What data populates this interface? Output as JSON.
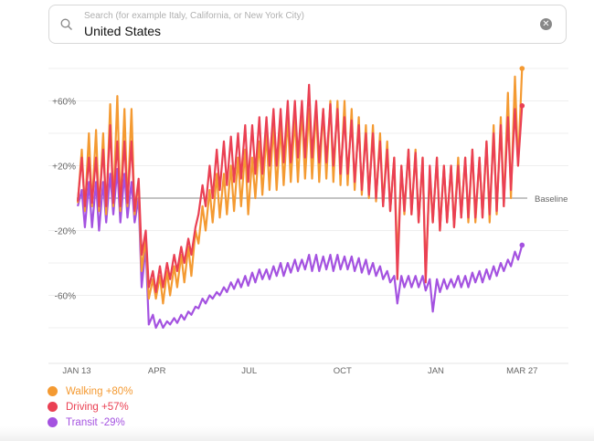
{
  "search": {
    "placeholder": "Search (for example Italy, California, or New York City)",
    "value": "United States",
    "icon": "search-icon",
    "clear_icon": "clear-icon"
  },
  "chart_data": {
    "type": "line",
    "title": "",
    "baseline_label": "Baseline",
    "y_unit": "% change",
    "ylim": [
      -80,
      80
    ],
    "grid": true,
    "y_ticks": [
      {
        "value": 60,
        "label": "+60%"
      },
      {
        "value": 20,
        "label": "+20%"
      },
      {
        "value": -20,
        "label": "-20%"
      },
      {
        "value": -60,
        "label": "-60%"
      }
    ],
    "x_ticks": [
      {
        "date": "2020-01-13",
        "label": "JAN 13"
      },
      {
        "date": "2020-04-01",
        "label": "APR"
      },
      {
        "date": "2020-07-01",
        "label": "JUL"
      },
      {
        "date": "2020-10-01",
        "label": "OCT"
      },
      {
        "date": "2021-01-01",
        "label": "JAN"
      },
      {
        "date": "2021-03-27",
        "label": "MAR 27"
      }
    ],
    "x_week_start": [
      "2020-01-13",
      "2020-01-20",
      "2020-01-27",
      "2020-02-03",
      "2020-02-10",
      "2020-02-17",
      "2020-02-24",
      "2020-03-02",
      "2020-03-09",
      "2020-03-16",
      "2020-03-23",
      "2020-03-30",
      "2020-04-06",
      "2020-04-13",
      "2020-04-20",
      "2020-04-27",
      "2020-05-04",
      "2020-05-11",
      "2020-05-18",
      "2020-05-25",
      "2020-06-01",
      "2020-06-08",
      "2020-06-15",
      "2020-06-22",
      "2020-06-29",
      "2020-07-06",
      "2020-07-13",
      "2020-07-20",
      "2020-07-27",
      "2020-08-03",
      "2020-08-10",
      "2020-08-17",
      "2020-08-24",
      "2020-08-31",
      "2020-09-07",
      "2020-09-14",
      "2020-09-21",
      "2020-09-28",
      "2020-10-05",
      "2020-10-12",
      "2020-10-19",
      "2020-10-26",
      "2020-11-02",
      "2020-11-09",
      "2020-11-16",
      "2020-11-23",
      "2020-11-30",
      "2020-12-07",
      "2020-12-14",
      "2020-12-21",
      "2020-12-28",
      "2021-01-04",
      "2021-01-11",
      "2021-01-18",
      "2021-01-25",
      "2021-02-01",
      "2021-02-08",
      "2021-02-15",
      "2021-02-22",
      "2021-03-01",
      "2021-03-08",
      "2021-03-15",
      "2021-03-22"
    ],
    "series": [
      {
        "name": "Walking",
        "value_label": "+80%",
        "color": "#f49a32",
        "weekly_low": [
          -3,
          -8,
          -5,
          -8,
          -10,
          -5,
          -8,
          -5,
          -10,
          -45,
          -62,
          -62,
          -65,
          -60,
          -55,
          -52,
          -48,
          -28,
          -20,
          -15,
          -12,
          -10,
          -8,
          -5,
          -10,
          0,
          2,
          5,
          5,
          8,
          10,
          10,
          12,
          12,
          10,
          12,
          10,
          8,
          8,
          5,
          2,
          0,
          -2,
          -5,
          -8,
          -40,
          -10,
          -10,
          -15,
          -48,
          -15,
          -20,
          -15,
          -18,
          -12,
          -15,
          -15,
          -12,
          -15,
          -10,
          -5,
          0,
          20
        ],
        "weekly_high": [
          30,
          40,
          42,
          40,
          58,
          63,
          55,
          55,
          10,
          -25,
          -50,
          -48,
          -45,
          -42,
          -35,
          -30,
          -20,
          -5,
          5,
          15,
          15,
          20,
          25,
          30,
          25,
          35,
          40,
          45,
          45,
          50,
          50,
          55,
          55,
          55,
          55,
          60,
          60,
          60,
          55,
          50,
          45,
          45,
          40,
          35,
          25,
          20,
          30,
          30,
          25,
          15,
          25,
          20,
          20,
          25,
          25,
          30,
          25,
          35,
          45,
          50,
          65,
          75,
          80
        ]
      },
      {
        "name": "Driving",
        "value_label": "+57%",
        "color": "#ea4053",
        "weekly_low": [
          -2,
          -5,
          -3,
          -5,
          -5,
          -3,
          -5,
          -3,
          -8,
          -35,
          -55,
          -58,
          -55,
          -50,
          -45,
          -40,
          -35,
          -10,
          -5,
          0,
          5,
          8,
          10,
          12,
          10,
          15,
          15,
          20,
          20,
          22,
          22,
          25,
          25,
          25,
          22,
          22,
          20,
          15,
          15,
          10,
          5,
          2,
          0,
          -5,
          -8,
          -50,
          -8,
          -10,
          -15,
          -52,
          -15,
          -20,
          -15,
          -18,
          -12,
          -12,
          -12,
          -12,
          -10,
          -8,
          -5,
          5,
          20
        ],
        "weekly_high": [
          25,
          25,
          25,
          30,
          45,
          35,
          35,
          35,
          12,
          -20,
          -45,
          -42,
          -40,
          -35,
          -30,
          -25,
          -18,
          8,
          20,
          30,
          35,
          38,
          40,
          45,
          45,
          50,
          50,
          55,
          55,
          60,
          60,
          60,
          70,
          60,
          55,
          58,
          55,
          50,
          48,
          45,
          40,
          40,
          35,
          30,
          25,
          20,
          30,
          28,
          25,
          20,
          25,
          20,
          20,
          20,
          25,
          30,
          25,
          35,
          40,
          45,
          50,
          55,
          57
        ]
      },
      {
        "name": "Transit",
        "value_label": "-29%",
        "color": "#a452e0",
        "weekly_low": [
          -5,
          -18,
          -18,
          -20,
          -15,
          -10,
          -15,
          -12,
          -15,
          -55,
          -78,
          -80,
          -80,
          -78,
          -77,
          -75,
          -72,
          -68,
          -65,
          -62,
          -60,
          -58,
          -56,
          -55,
          -54,
          -52,
          -50,
          -50,
          -48,
          -48,
          -46,
          -45,
          -44,
          -45,
          -45,
          -44,
          -45,
          -44,
          -44,
          -45,
          -46,
          -47,
          -48,
          -50,
          -52,
          -65,
          -55,
          -55,
          -55,
          -57,
          -70,
          -58,
          -56,
          -55,
          -55,
          -55,
          -52,
          -52,
          -50,
          -48,
          -45,
          -42,
          -38
        ],
        "weekly_high": [
          5,
          10,
          10,
          10,
          15,
          18,
          15,
          10,
          0,
          -30,
          -72,
          -75,
          -76,
          -74,
          -72,
          -70,
          -67,
          -62,
          -60,
          -58,
          -55,
          -52,
          -50,
          -48,
          -46,
          -44,
          -44,
          -42,
          -40,
          -40,
          -38,
          -38,
          -35,
          -35,
          -36,
          -35,
          -35,
          -36,
          -36,
          -37,
          -38,
          -40,
          -42,
          -45,
          -48,
          -48,
          -48,
          -48,
          -48,
          -50,
          -50,
          -50,
          -50,
          -48,
          -48,
          -46,
          -45,
          -44,
          -42,
          -40,
          -38,
          -33,
          -29
        ]
      }
    ]
  }
}
